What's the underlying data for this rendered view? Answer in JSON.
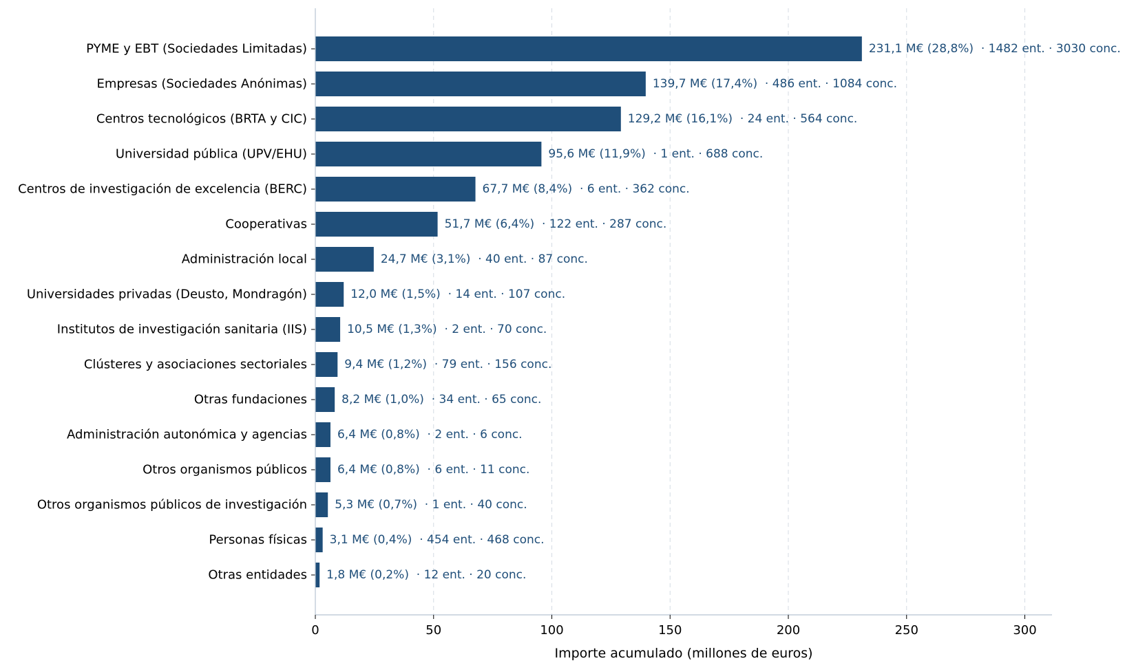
{
  "chart_data": {
    "type": "bar",
    "orientation": "horizontal",
    "title": "",
    "xlabel": "Importe acumulado (millones de euros)",
    "ylabel": "",
    "xlim": [
      0,
      312
    ],
    "xticks": [
      0,
      50,
      100,
      150,
      200,
      250,
      300
    ],
    "grid": "x-dashed",
    "bar_color": "#1f4e79",
    "label_color": "#1f4e79",
    "categories": [
      "PYME y EBT (Sociedades Limitadas)",
      "Empresas (Sociedades Anónimas)",
      "Centros tecnológicos (BRTA y CIC)",
      "Universidad pública (UPV/EHU)",
      "Centros de investigación de excelencia (BERC)",
      "Cooperativas",
      "Administración local",
      "Universidades privadas (Deusto, Mondragón)",
      "Institutos de investigación sanitaria (IIS)",
      "Clústeres y asociaciones sectoriales",
      "Otras fundaciones",
      "Administración autonómica y agencias",
      "Otros organismos públicos",
      "Otros organismos públicos de investigación",
      "Personas físicas",
      "Otras entidades"
    ],
    "values": [
      231.1,
      139.7,
      129.2,
      95.6,
      67.7,
      51.7,
      24.7,
      12.0,
      10.5,
      9.4,
      8.2,
      6.4,
      6.4,
      5.3,
      3.1,
      1.8
    ],
    "data_labels": [
      "231,1 M€ (28,8%)  · 1482 ent. · 3030 conc.",
      "139,7 M€ (17,4%)  · 486 ent. · 1084 conc.",
      "129,2 M€ (16,1%)  · 24 ent. · 564 conc.",
      "95,6 M€ (11,9%)  · 1 ent. · 688 conc.",
      "67,7 M€ (8,4%)  · 6 ent. · 362 conc.",
      "51,7 M€ (6,4%)  · 122 ent. · 287 conc.",
      "24,7 M€ (3,1%)  · 40 ent. · 87 conc.",
      "12,0 M€ (1,5%)  · 14 ent. · 107 conc.",
      "10,5 M€ (1,3%)  · 2 ent. · 70 conc.",
      "9,4 M€ (1,2%)  · 79 ent. · 156 conc.",
      "8,2 M€ (1,0%)  · 34 ent. · 65 conc.",
      "6,4 M€ (0,8%)  · 2 ent. · 6 conc.",
      "6,4 M€ (0,8%)  · 6 ent. · 11 conc.",
      "5,3 M€ (0,7%)  · 1 ent. · 40 conc.",
      "3,1 M€ (0,4%)  · 454 ent. · 468 conc.",
      "1,8 M€ (0,2%)  · 12 ent. · 20 conc."
    ]
  }
}
